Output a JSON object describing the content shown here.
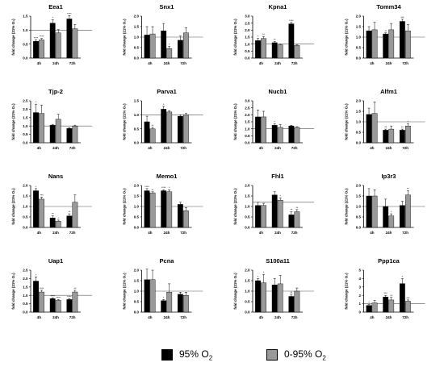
{
  "legend": {
    "items": [
      {
        "label_main": "95% O",
        "label_sub": "2",
        "color": "#000000"
      },
      {
        "label_main": "0-95% O",
        "label_sub": "2",
        "color": "#999999"
      }
    ]
  },
  "chart_data": [
    {
      "type": "bar",
      "title": "Eea1",
      "ylabel": "fold change (21% O₂)",
      "categories": [
        "4h",
        "24h",
        "72h"
      ],
      "ylim": [
        0,
        1.5
      ],
      "yticks": [
        "0.0",
        "0.5",
        "1.0",
        "1.5"
      ],
      "refline": 1.0,
      "series": [
        {
          "values": [
            0.6,
            1.25,
            1.4
          ],
          "errors": [
            0.05,
            0.12,
            0.12
          ],
          "sig": [
            "****",
            "*",
            "****"
          ]
        },
        {
          "values": [
            0.65,
            0.9,
            1.05
          ],
          "errors": [
            0.05,
            0.12,
            0.15
          ],
          "sig": [
            "****",
            "",
            ""
          ]
        }
      ]
    },
    {
      "type": "bar",
      "title": "Snx1",
      "ylabel": "fold change (21% O₂)",
      "categories": [
        "4h",
        "24h",
        "72h"
      ],
      "ylim": [
        0,
        2.0
      ],
      "yticks": [
        "0.0",
        "0.5",
        "1.0",
        "1.5",
        "2.0"
      ],
      "refline": 1.0,
      "series": [
        {
          "values": [
            1.1,
            1.3,
            0.85
          ],
          "errors": [
            0.4,
            0.35,
            0.2
          ],
          "sig": [
            "",
            "",
            ""
          ]
        },
        {
          "values": [
            1.15,
            0.45,
            1.2
          ],
          "errors": [
            0.35,
            0.1,
            0.25
          ],
          "sig": [
            "",
            "*",
            ""
          ]
        }
      ]
    },
    {
      "type": "bar",
      "title": "Kpna1",
      "ylabel": "fold change (21% O₂)",
      "categories": [
        "4h",
        "24h",
        "72h"
      ],
      "ylim": [
        0,
        3.0
      ],
      "yticks": [
        "0.0",
        "0.5",
        "1.0",
        "1.5",
        "2.0",
        "2.5",
        "3.0"
      ],
      "refline": 1.0,
      "series": [
        {
          "values": [
            1.25,
            1.1,
            2.45
          ],
          "errors": [
            0.15,
            0.08,
            0.1
          ],
          "sig": [
            "*",
            "**",
            "****"
          ]
        },
        {
          "values": [
            1.4,
            0.95,
            0.9
          ],
          "errors": [
            0.15,
            0.05,
            0.05
          ],
          "sig": [
            "**",
            "",
            ""
          ]
        }
      ]
    },
    {
      "type": "bar",
      "title": "Tomm34",
      "ylabel": "fold change (21% O₂)",
      "categories": [
        "4h",
        "24h",
        "72h"
      ],
      "ylim": [
        0,
        2.0
      ],
      "yticks": [
        "0.0",
        "0.5",
        "1.0",
        "1.5",
        "2.0"
      ],
      "refline": 1.0,
      "series": [
        {
          "values": [
            1.3,
            1.15,
            1.75
          ],
          "errors": [
            0.2,
            0.05,
            0.1
          ],
          "sig": [
            "",
            "**",
            "***"
          ]
        },
        {
          "values": [
            1.35,
            1.35,
            1.3
          ],
          "errors": [
            0.35,
            0.3,
            0.3
          ],
          "sig": [
            "",
            "",
            ""
          ]
        }
      ]
    },
    {
      "type": "bar",
      "title": "Tjp-2",
      "ylabel": "fold change (21% O₂)",
      "categories": [
        "4h",
        "24h",
        "72h"
      ],
      "ylim": [
        0,
        2.5
      ],
      "yticks": [
        "0.0",
        "0.5",
        "1.0",
        "1.5",
        "2.0",
        "2.5"
      ],
      "refline": 1.0,
      "series": [
        {
          "values": [
            1.8,
            1.05,
            0.85
          ],
          "errors": [
            0.5,
            0.05,
            0.05
          ],
          "sig": [
            "*",
            "",
            ""
          ]
        },
        {
          "values": [
            1.75,
            1.4,
            1.0
          ],
          "errors": [
            0.5,
            0.3,
            0.05
          ],
          "sig": [
            "",
            "",
            ""
          ]
        }
      ]
    },
    {
      "type": "bar",
      "title": "Parva1",
      "ylabel": "fold change (21% O₂)",
      "categories": [
        "4h",
        "24h",
        "72h"
      ],
      "ylim": [
        0,
        1.5
      ],
      "yticks": [
        "0.0",
        "0.5",
        "1.0",
        "1.5"
      ],
      "refline": 1.0,
      "series": [
        {
          "values": [
            0.75,
            1.2,
            0.95
          ],
          "errors": [
            0.2,
            0.1,
            0.05
          ],
          "sig": [
            "",
            "*",
            ""
          ]
        },
        {
          "values": [
            0.5,
            1.1,
            1.0
          ],
          "errors": [
            0.05,
            0.05,
            0.05
          ],
          "sig": [
            "**",
            "",
            ""
          ]
        }
      ]
    },
    {
      "type": "bar",
      "title": "Nucb1",
      "ylabel": "fold change (21% O₂)",
      "categories": [
        "4h",
        "24h",
        "72h"
      ],
      "ylim": [
        0,
        3.0
      ],
      "yticks": [
        "0.0",
        "0.5",
        "1.0",
        "1.5",
        "2.0",
        "2.5",
        "3.0"
      ],
      "refline": 1.0,
      "series": [
        {
          "values": [
            1.85,
            1.25,
            1.2
          ],
          "errors": [
            0.5,
            0.1,
            0.05
          ],
          "sig": [
            "",
            "*",
            ""
          ]
        },
        {
          "values": [
            1.85,
            1.1,
            1.1
          ],
          "errors": [
            0.4,
            0.2,
            0.05
          ],
          "sig": [
            "",
            "",
            ""
          ]
        }
      ]
    },
    {
      "type": "bar",
      "title": "Alfm1",
      "ylabel": "fold change (21% O₂)",
      "categories": [
        "4h",
        "24h",
        "72h"
      ],
      "ylim": [
        0,
        2.0
      ],
      "yticks": [
        "0.0",
        "0.5",
        "1.0",
        "1.5",
        "2.0"
      ],
      "refline": 1.0,
      "series": [
        {
          "values": [
            1.35,
            0.6,
            0.6
          ],
          "errors": [
            0.3,
            0.05,
            0.05
          ],
          "sig": [
            "",
            "**",
            "**"
          ]
        },
        {
          "values": [
            1.4,
            0.65,
            0.8
          ],
          "errors": [
            0.55,
            0.15,
            0.1
          ],
          "sig": [
            "",
            "",
            "*"
          ]
        }
      ]
    },
    {
      "type": "bar",
      "title": "Nans",
      "ylabel": "fold change (21% O₂)",
      "categories": [
        "4h",
        "24h",
        "72h"
      ],
      "ylim": [
        0,
        2.0
      ],
      "yticks": [
        "0.0",
        "0.5",
        "1.0",
        "1.5",
        "2.0"
      ],
      "refline": 1.0,
      "series": [
        {
          "values": [
            1.75,
            0.45,
            0.55
          ],
          "errors": [
            0.1,
            0.1,
            0.1
          ],
          "sig": [
            "*",
            "**",
            "**"
          ]
        },
        {
          "values": [
            1.35,
            0.3,
            1.2
          ],
          "errors": [
            0.1,
            0.05,
            0.35
          ],
          "sig": [
            "***",
            "*",
            ""
          ]
        }
      ]
    },
    {
      "type": "bar",
      "title": "Memo1",
      "ylabel": "fold change (21% O₂)",
      "categories": [
        "4h",
        "24h",
        "72h"
      ],
      "ylim": [
        0,
        2.0
      ],
      "yticks": [
        "0.0",
        "0.5",
        "1.0",
        "1.5",
        "2.0"
      ],
      "refline": 1.0,
      "series": [
        {
          "values": [
            1.75,
            1.75,
            1.1
          ],
          "errors": [
            0.1,
            0.05,
            0.1
          ],
          "sig": [
            "****",
            "****",
            ""
          ]
        },
        {
          "values": [
            1.65,
            1.7,
            0.8
          ],
          "errors": [
            0.05,
            0.1,
            0.15
          ],
          "sig": [
            "**",
            "*",
            ""
          ]
        }
      ]
    },
    {
      "type": "bar",
      "title": "Fhl1",
      "ylabel": "fold change (21% O₂)",
      "categories": [
        "4h",
        "24h",
        "72h"
      ],
      "ylim": [
        0,
        2.0
      ],
      "yticks": [
        "0.0",
        "0.5",
        "1.0",
        "1.5",
        "2.0"
      ],
      "refline": 1.2,
      "series": [
        {
          "values": [
            1.05,
            1.55,
            0.6
          ],
          "errors": [
            0.15,
            0.15,
            0.15
          ],
          "sig": [
            "",
            "",
            "**"
          ]
        },
        {
          "values": [
            1.05,
            1.3,
            0.75
          ],
          "errors": [
            0.1,
            0.1,
            0.1
          ],
          "sig": [
            "",
            "*",
            "**"
          ]
        }
      ]
    },
    {
      "type": "bar",
      "title": "Ip3r3",
      "ylabel": "fold change (21% O₂)",
      "categories": [
        "4h",
        "24h",
        "72h"
      ],
      "ylim": [
        0,
        2.0
      ],
      "yticks": [
        "0.0",
        "0.5",
        "1.0",
        "1.5",
        "2.0"
      ],
      "refline": 1.0,
      "series": [
        {
          "values": [
            1.5,
            1.0,
            1.05
          ],
          "errors": [
            0.35,
            0.35,
            0.2
          ],
          "sig": [
            "",
            "",
            ""
          ]
        },
        {
          "values": [
            1.5,
            0.55,
            1.55
          ],
          "errors": [
            0.3,
            0.1,
            0.2
          ],
          "sig": [
            "",
            "*",
            "**"
          ]
        }
      ]
    },
    {
      "type": "bar",
      "title": "Uap1",
      "ylabel": "fold change (21% O₂)",
      "categories": [
        "4h",
        "24h",
        "72h"
      ],
      "ylim": [
        0,
        2.5
      ],
      "yticks": [
        "0.0",
        "0.5",
        "1.0",
        "1.5",
        "2.0",
        "2.5"
      ],
      "refline": 1.0,
      "series": [
        {
          "values": [
            1.85,
            0.8,
            0.75
          ],
          "errors": [
            0.25,
            0.05,
            0.05
          ],
          "sig": [
            "*",
            "****",
            "****"
          ]
        },
        {
          "values": [
            1.2,
            0.7,
            1.2
          ],
          "errors": [
            0.1,
            0.05,
            0.1
          ],
          "sig": [
            "****",
            "****",
            "**"
          ]
        }
      ]
    },
    {
      "type": "bar",
      "title": "Pcna",
      "ylabel": "fold change (21% O₂)",
      "categories": [
        "4h",
        "24h",
        "72h"
      ],
      "ylim": [
        0,
        2.0
      ],
      "yticks": [
        "0.0",
        "0.5",
        "1.0",
        "1.5",
        "2.0"
      ],
      "refline": 1.0,
      "series": [
        {
          "values": [
            1.55,
            0.55,
            0.85
          ],
          "errors": [
            0.5,
            0.05,
            0.1
          ],
          "sig": [
            "",
            "*",
            ""
          ]
        },
        {
          "values": [
            1.55,
            0.95,
            0.8
          ],
          "errors": [
            0.45,
            0.4,
            0.15
          ],
          "sig": [
            "",
            "",
            ""
          ]
        }
      ]
    },
    {
      "type": "bar",
      "title": "S100a11",
      "ylabel": "fold change (21% O₂)",
      "categories": [
        "4h",
        "24h",
        "72h"
      ],
      "ylim": [
        0,
        2.0
      ],
      "yticks": [
        "0.0",
        "0.5",
        "1.0",
        "1.5",
        "2.0"
      ],
      "refline": 1.0,
      "series": [
        {
          "values": [
            1.5,
            1.3,
            0.75
          ],
          "errors": [
            0.1,
            0.3,
            0.1
          ],
          "sig": [
            "*",
            "",
            "**"
          ]
        },
        {
          "values": [
            1.4,
            1.35,
            1.0
          ],
          "errors": [
            0.4,
            0.4,
            0.15
          ],
          "sig": [
            "*",
            "",
            ""
          ]
        }
      ]
    },
    {
      "type": "bar",
      "title": "Ppp1ca",
      "ylabel": "fold change (21% O₂)",
      "categories": [
        "4h",
        "24h",
        "72h"
      ],
      "ylim": [
        0,
        5.0
      ],
      "yticks": [
        "0",
        "1",
        "2",
        "3",
        "4",
        "5"
      ],
      "refline": 1.0,
      "series": [
        {
          "values": [
            0.8,
            1.8,
            3.4
          ],
          "errors": [
            0.1,
            0.2,
            0.6
          ],
          "sig": [
            "*",
            "***",
            "*"
          ]
        },
        {
          "values": [
            1.1,
            1.45,
            1.3
          ],
          "errors": [
            0.3,
            0.3,
            0.15
          ],
          "sig": [
            "",
            "**",
            "***"
          ]
        }
      ]
    }
  ]
}
